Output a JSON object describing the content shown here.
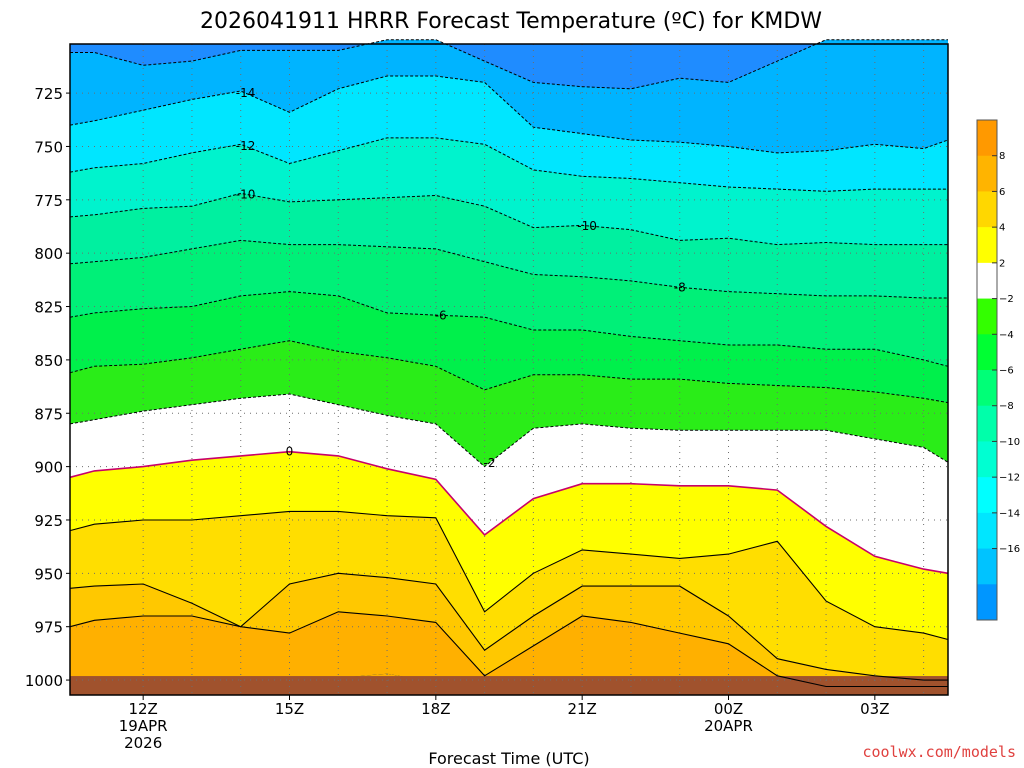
{
  "chart_data": {
    "type": "heatmap",
    "title": "2026041911 HRRR Forecast Temperature (ºC) for KMDW",
    "xlabel": "Forecast Time (UTC)",
    "ylabel": "",
    "credit": "coolwx.com/models",
    "x_range_hours_utc": [
      10.5,
      28.5
    ],
    "y_range_hPa": [
      702,
      1007
    ],
    "y_ticks": [
      {
        "value": 725,
        "label": "725"
      },
      {
        "value": 750,
        "label": "750"
      },
      {
        "value": 775,
        "label": "775"
      },
      {
        "value": 800,
        "label": "800"
      },
      {
        "value": 825,
        "label": "825"
      },
      {
        "value": 850,
        "label": "850"
      },
      {
        "value": 875,
        "label": "875"
      },
      {
        "value": 900,
        "label": "900"
      },
      {
        "value": 925,
        "label": "925"
      },
      {
        "value": 950,
        "label": "950"
      },
      {
        "value": 975,
        "label": "975"
      },
      {
        "value": 1000,
        "label": "1000"
      }
    ],
    "x_ticks": [
      {
        "hour": 12,
        "lines": [
          "12Z",
          "19APR",
          "2026"
        ]
      },
      {
        "hour": 15,
        "lines": [
          "15Z"
        ]
      },
      {
        "hour": 18,
        "lines": [
          "18Z"
        ]
      },
      {
        "hour": 21,
        "lines": [
          "21Z"
        ]
      },
      {
        "hour": 24,
        "lines": [
          "00Z",
          "20APR"
        ]
      },
      {
        "hour": 27,
        "lines": [
          "03Z"
        ]
      }
    ],
    "x_grid_hours": [
      13,
      14,
      16,
      17,
      19,
      20,
      22,
      23,
      25,
      26,
      28
    ],
    "sample_hours": [
      10.5,
      11,
      12,
      13,
      14,
      15,
      16,
      17,
      18,
      19,
      20,
      21,
      22,
      23,
      24,
      25,
      26,
      27,
      28,
      28.5
    ],
    "isotherms": [
      {
        "temp": -16,
        "label": "",
        "pressure": [
          706,
          706,
          712,
          710,
          705,
          705,
          705,
          700,
          700,
          710,
          720,
          722,
          723,
          718,
          720,
          710,
          700,
          700,
          700,
          700
        ]
      },
      {
        "temp": -14,
        "label": "-14",
        "pressure": [
          740,
          738,
          733,
          728,
          724,
          734,
          723,
          717,
          717,
          720,
          741,
          744,
          747,
          748,
          750,
          753,
          752,
          749,
          751,
          747
        ]
      },
      {
        "temp": -12,
        "label": "-12",
        "pressure": [
          762,
          760,
          758,
          753,
          749,
          758,
          752,
          746,
          746,
          749,
          761,
          764,
          765,
          767,
          769,
          770,
          771,
          770,
          770,
          770
        ]
      },
      {
        "temp": -10,
        "label": "-10",
        "pressure": [
          783,
          782,
          779,
          778,
          772,
          776,
          775,
          774,
          773,
          778,
          788,
          787,
          789,
          794,
          793,
          796,
          795,
          796,
          796,
          796
        ]
      },
      {
        "temp": -8,
        "label": "-8",
        "pressure": [
          805,
          804,
          802,
          798,
          794,
          796,
          796,
          797,
          798,
          804,
          810,
          811,
          813,
          816,
          818,
          819,
          820,
          820,
          821,
          821
        ]
      },
      {
        "temp": -6,
        "label": "-6",
        "pressure": [
          830,
          828,
          826,
          825,
          820,
          818,
          820,
          828,
          829,
          830,
          836,
          836,
          839,
          841,
          843,
          843,
          845,
          845,
          850,
          853
        ]
      },
      {
        "temp": -4,
        "label": "",
        "pressure": [
          856,
          853,
          852,
          849,
          845,
          841,
          846,
          849,
          853,
          864,
          857,
          857,
          859,
          859,
          861,
          862,
          863,
          865,
          868,
          870
        ]
      },
      {
        "temp": -2,
        "label": "-2",
        "pressure": [
          880,
          878,
          874,
          871,
          868,
          866,
          871,
          876,
          880,
          900,
          882,
          880,
          882,
          883,
          883,
          883,
          883,
          887,
          891,
          898
        ]
      },
      {
        "temp": 0,
        "label": "0",
        "pressure": [
          905,
          902,
          900,
          897,
          895,
          893,
          895,
          901,
          906,
          932,
          915,
          908,
          908,
          909,
          909,
          911,
          928,
          942,
          948,
          950
        ]
      },
      {
        "temp": 2,
        "label": "",
        "pressure": [
          930,
          927,
          925,
          925,
          923,
          921,
          921,
          923,
          924,
          968,
          950,
          939,
          941,
          943,
          941,
          935,
          963,
          975,
          978,
          981
        ]
      },
      {
        "temp": 4,
        "label": "",
        "pressure": [
          957,
          956,
          955,
          964,
          975,
          955,
          950,
          952,
          955,
          986,
          970,
          956,
          956,
          956,
          970,
          990,
          995,
          998,
          1000,
          1000
        ]
      },
      {
        "temp": 6,
        "label": "",
        "pressure": [
          975,
          972,
          970,
          970,
          975,
          978,
          968,
          970,
          973,
          998,
          984,
          970,
          973,
          978,
          983,
          998,
          1003,
          1003,
          1003,
          1003
        ]
      },
      {
        "temp": 8,
        "label": "",
        "pressure": [
          1003,
          1003,
          1003,
          1003,
          1003,
          1003,
          999,
          997,
          1001,
          1003,
          1003,
          1003,
          1003,
          1003,
          1003,
          1003,
          1003,
          1003,
          1003,
          1003
        ]
      }
    ],
    "isotherm_label_positions": [
      {
        "temp": -14,
        "hour": 14.1
      },
      {
        "temp": -12,
        "hour": 14.1
      },
      {
        "temp": -10,
        "hour": 14.1
      },
      {
        "temp": -10,
        "hour": 21.1
      },
      {
        "temp": -8,
        "hour": 23.0
      },
      {
        "temp": -6,
        "hour": 18.1
      },
      {
        "temp": 0,
        "hour": 15.0
      },
      {
        "temp": -2,
        "hour": 19.1
      }
    ],
    "ground_pressure_hPa": 1000,
    "colorbar": {
      "colors": [
        "#ff9900",
        "#ffb400",
        "#ffd700",
        "#ffff00",
        "#ffffff",
        "#33ff00",
        "#00ff33",
        "#00ff77",
        "#00ffaa",
        "#00ffd2",
        "#00ffff",
        "#00e6ff",
        "#00c3ff",
        "#0096ff"
      ],
      "labels": [
        "8",
        "6",
        "4",
        "2",
        "−2",
        "−4",
        "−6",
        "−8",
        "−10",
        "−12",
        "−14",
        "−16"
      ]
    },
    "band_colors": {
      "below_-16": "#1f8cff",
      "-16_-14": "#00b4ff",
      "-14_-12": "#00e6ff",
      "-12_-10": "#00f3cd",
      "-10_-8": "#00f0a0",
      "-8_-6": "#00f078",
      "-6_-4": "#00f04b",
      "-4_-2": "#2aed18",
      "-2_2": "#ffffff",
      "2_4": "#ffff00",
      "4_6": "#ffde00",
      "6_8": "#ffc800",
      "above_8": "#ffb000",
      "ground": "#a0522d"
    }
  }
}
